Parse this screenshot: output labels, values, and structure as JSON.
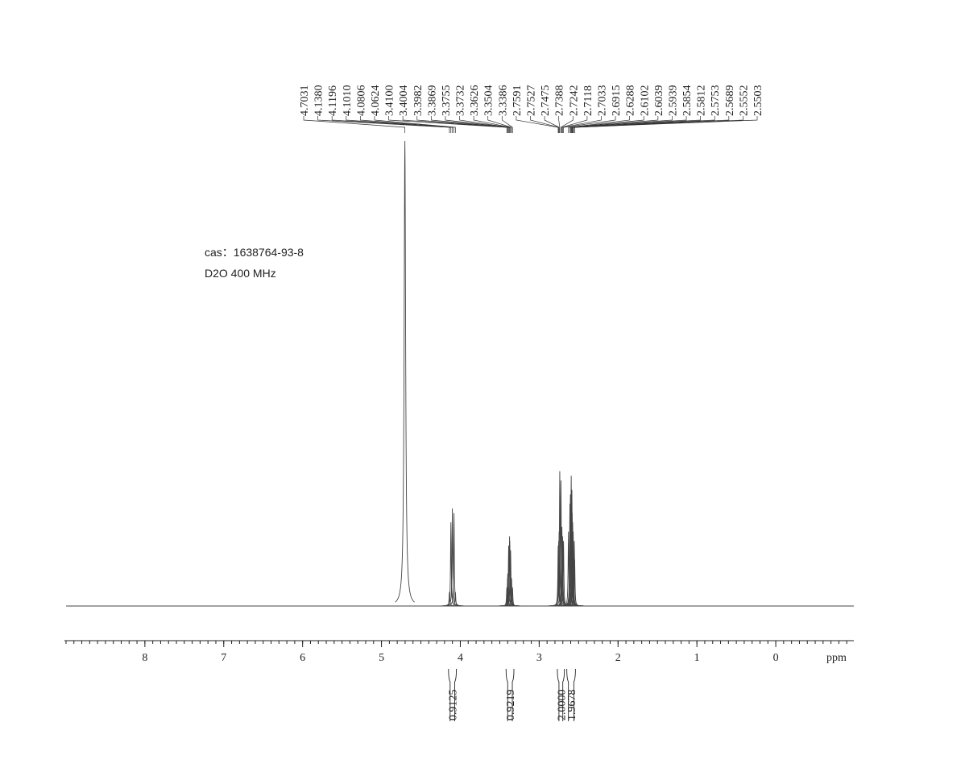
{
  "chart_data": {
    "type": "nmr",
    "annotations": [
      "cas：1638764-93-8",
      "D2O  400 MHz"
    ],
    "xlabel": "ppm",
    "xlim": [
      9.02,
      -0.99
    ],
    "xticks": [
      8,
      7,
      6,
      5,
      4,
      3,
      2,
      1,
      0
    ],
    "color": "#444444",
    "peaks": {
      "x": [
        4.7031,
        {
          "value": 4.138,
          "label": "4.1380"
        },
        4.1196,
        {
          "value": 4.101,
          "label": "4.1010"
        },
        4.0806,
        4.0624,
        {
          "value": 3.41,
          "label": "3.4100"
        },
        3.4004,
        3.3982,
        3.3869,
        3.3755,
        3.3732,
        3.3626,
        3.3504,
        3.3386,
        2.7591,
        2.7527,
        2.7475,
        2.7388,
        2.7242,
        2.7118,
        2.7033,
        2.6915,
        2.6288,
        2.6102,
        2.6039,
        2.5939,
        2.5854,
        2.5812,
        2.5753,
        2.5689,
        2.5552,
        2.5503
      ],
      "values": [
        100,
        3,
        18,
        21,
        20,
        3,
        4,
        6,
        7,
        13,
        15,
        14,
        12,
        6,
        4,
        13,
        14,
        16,
        29,
        27,
        17,
        15,
        14,
        16,
        22,
        24,
        28,
        25,
        20,
        18,
        16,
        14,
        10
      ]
    },
    "integrals": {
      "ranges": [
        [
          4.16,
          4.04
        ],
        [
          3.43,
          3.31
        ],
        [
          2.78,
          2.67
        ],
        [
          2.66,
          2.53
        ]
      ],
      "values": [
        0.9125,
        0.9219,
        {
          "value": 2,
          "label": "2.0000"
        },
        1.9678
      ]
    }
  }
}
